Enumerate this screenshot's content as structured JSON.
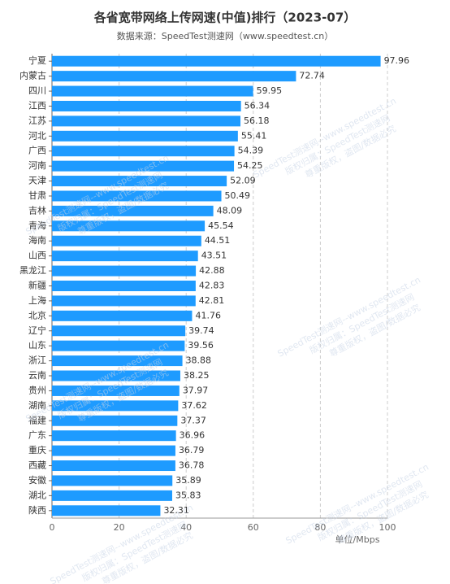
{
  "chart_data": {
    "type": "hbar",
    "title": "各省宽带网络上传网速(中值)排行（2023-07）",
    "subtitle": "数据来源：SpeedTest测速网（www.speedtest.cn）",
    "x_unit_label": "单位/Mbps",
    "watermarks": [
      "SpeedTest测速网--www.speedtest.cn",
      "版权归属：SpeedTest测速网",
      "尊重版权，盗图/数据必究"
    ],
    "categories": [
      "宁夏",
      "内蒙古",
      "四川",
      "江西",
      "江苏",
      "河北",
      "广西",
      "河南",
      "天津",
      "甘肃",
      "吉林",
      "青海",
      "海南",
      "山西",
      "黑龙江",
      "新疆",
      "上海",
      "北京",
      "辽宁",
      "山东",
      "浙江",
      "云南",
      "贵州",
      "湖南",
      "福建",
      "广东",
      "重庆",
      "西藏",
      "安徽",
      "湖北",
      "陕西"
    ],
    "values": [
      97.96,
      72.74,
      59.95,
      56.34,
      56.18,
      55.41,
      54.39,
      54.25,
      52.09,
      50.49,
      48.09,
      45.54,
      44.51,
      43.51,
      42.88,
      42.83,
      42.81,
      41.76,
      39.74,
      39.56,
      38.88,
      38.25,
      37.97,
      37.62,
      37.37,
      36.96,
      36.79,
      36.78,
      35.89,
      35.83,
      32.31
    ],
    "color": "#1e9bff",
    "xlim": [
      0,
      100
    ],
    "xticks": [
      0,
      20,
      40,
      60,
      80,
      100
    ],
    "grid": true
  }
}
